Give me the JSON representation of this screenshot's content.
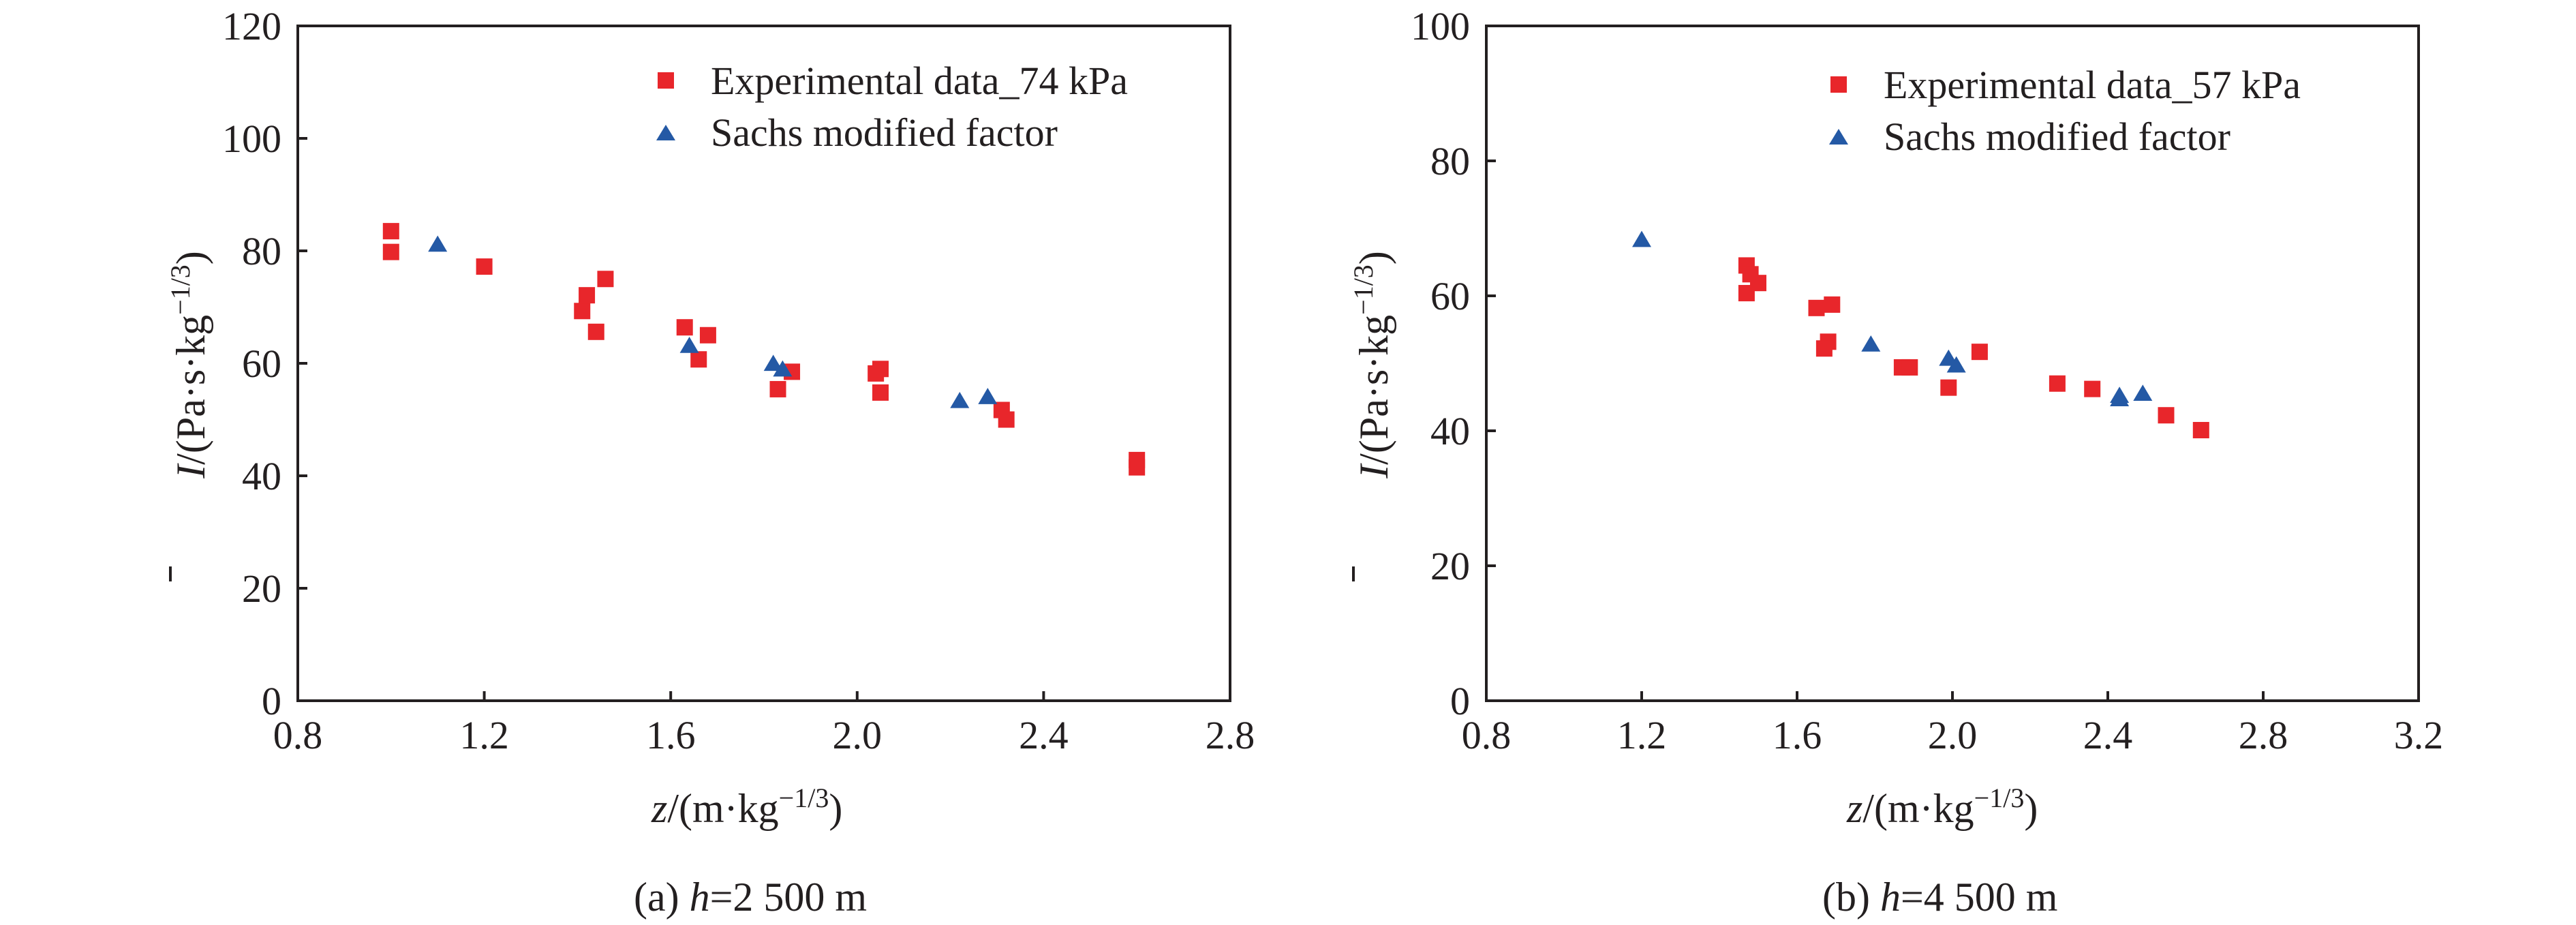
{
  "colors": {
    "experimental": "#e8262b",
    "sachs": "#2459a5",
    "axis": "#231f20"
  },
  "chart_data": [
    {
      "type": "scatter",
      "panel": "a",
      "caption": {
        "prefix": "(a) ",
        "var": "h",
        "suffix": "=2 500 m"
      },
      "xlabel": {
        "var": "z",
        "unit": "/(m·kg",
        "exp": "−1/3",
        "close": ")"
      },
      "ylabel": {
        "var": "I",
        "unit": "/(Pa·s·kg",
        "exp": "−1/3",
        "close": ")"
      },
      "xlim": [
        0.8,
        2.8
      ],
      "ylim": [
        0,
        120
      ],
      "xticks": [
        0.8,
        1.2,
        1.6,
        2.0,
        2.4,
        2.8
      ],
      "xtick_labels": [
        "0.8",
        "1.2",
        "1.6",
        "2.0",
        "2.4",
        "2.8"
      ],
      "yticks": [
        0,
        20,
        40,
        60,
        80,
        100,
        120
      ],
      "ytick_labels": [
        "0",
        "20",
        "40",
        "60",
        "80",
        "100",
        "120"
      ],
      "grid": false,
      "legend_position": "top-right",
      "series": [
        {
          "name": "Experimental data_74 kPa",
          "marker": "square",
          "color": "#e8262b",
          "points": [
            [
              1.0,
              83.5
            ],
            [
              1.0,
              79.8
            ],
            [
              1.2,
              77.2
            ],
            [
              1.41,
              69.3
            ],
            [
              1.42,
              72.1
            ],
            [
              1.44,
              65.6
            ],
            [
              1.46,
              75.0
            ],
            [
              1.63,
              66.4
            ],
            [
              1.66,
              60.7
            ],
            [
              1.68,
              65.0
            ],
            [
              1.83,
              55.4
            ],
            [
              1.86,
              58.5
            ],
            [
              2.04,
              58.2
            ],
            [
              2.05,
              59.0
            ],
            [
              2.05,
              54.8
            ],
            [
              2.31,
              51.7
            ],
            [
              2.32,
              50.0
            ],
            [
              2.6,
              42.8
            ],
            [
              2.6,
              41.5
            ]
          ]
        },
        {
          "name": "Sachs modified factor",
          "marker": "triangle",
          "color": "#2459a5",
          "points": [
            [
              1.1,
              81.0
            ],
            [
              1.64,
              63.0
            ],
            [
              1.82,
              59.8
            ],
            [
              1.84,
              58.8
            ],
            [
              2.22,
              53.2
            ],
            [
              2.28,
              53.9
            ]
          ]
        }
      ]
    },
    {
      "type": "scatter",
      "panel": "b",
      "caption": {
        "prefix": "(b) ",
        "var": "h",
        "suffix": "=4 500 m"
      },
      "xlabel": {
        "var": "z",
        "unit": "/(m·kg",
        "exp": "−1/3",
        "close": ")"
      },
      "ylabel": {
        "var": "I",
        "unit": "/(Pa·s·kg",
        "exp": "−1/3",
        "close": ")"
      },
      "xlim": [
        0.8,
        3.2
      ],
      "ylim": [
        0,
        100
      ],
      "xticks": [
        0.8,
        1.2,
        1.6,
        2.0,
        2.4,
        2.8,
        3.2
      ],
      "xtick_labels": [
        "0.8",
        "1.2",
        "1.6",
        "2.0",
        "2.4",
        "2.8",
        "3.2"
      ],
      "yticks": [
        0,
        20,
        40,
        60,
        80,
        100
      ],
      "ytick_labels": [
        "0",
        "20",
        "40",
        "60",
        "80",
        "100"
      ],
      "grid": false,
      "legend_position": "top-right",
      "series": [
        {
          "name": "Experimental data_57 kPa",
          "marker": "square",
          "color": "#e8262b",
          "points": [
            [
              1.47,
              64.5
            ],
            [
              1.48,
              63.2
            ],
            [
              1.47,
              60.4
            ],
            [
              1.5,
              61.9
            ],
            [
              1.65,
              58.2
            ],
            [
              1.69,
              58.7
            ],
            [
              1.68,
              53.2
            ],
            [
              1.67,
              52.2
            ],
            [
              1.87,
              49.4
            ],
            [
              1.89,
              49.4
            ],
            [
              1.99,
              46.4
            ],
            [
              2.07,
              51.7
            ],
            [
              2.27,
              47.0
            ],
            [
              2.36,
              46.2
            ],
            [
              2.55,
              42.3
            ],
            [
              2.64,
              40.1
            ]
          ]
        },
        {
          "name": "Sachs modified factor",
          "marker": "triangle",
          "color": "#2459a5",
          "points": [
            [
              1.2,
              68.2
            ],
            [
              1.79,
              52.7
            ],
            [
              1.99,
              50.6
            ],
            [
              2.01,
              49.6
            ],
            [
              2.43,
              45.1
            ],
            [
              2.43,
              44.6
            ],
            [
              2.49,
              45.4
            ]
          ]
        }
      ]
    }
  ]
}
